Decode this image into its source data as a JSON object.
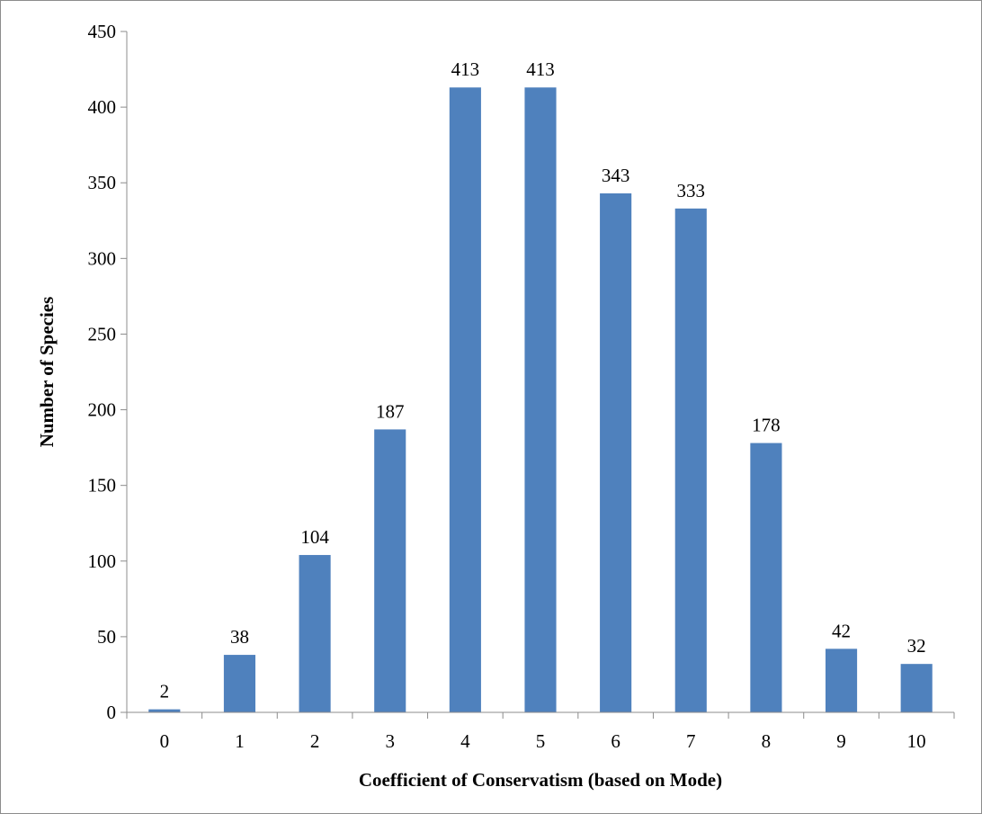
{
  "chart_data": {
    "type": "bar",
    "categories": [
      "0",
      "1",
      "2",
      "3",
      "4",
      "5",
      "6",
      "7",
      "8",
      "9",
      "10"
    ],
    "values": [
      2,
      38,
      104,
      187,
      413,
      413,
      343,
      333,
      178,
      42,
      32
    ],
    "xlabel": "Coefficient of Conservatism (based on Mode)",
    "ylabel": "Number of Species",
    "ylim": [
      0,
      450
    ],
    "yticks": [
      0,
      50,
      100,
      150,
      200,
      250,
      300,
      350,
      400,
      450
    ],
    "grid": false,
    "legend": "none",
    "bar_color": "#4F81BD",
    "data_labels": true
  }
}
